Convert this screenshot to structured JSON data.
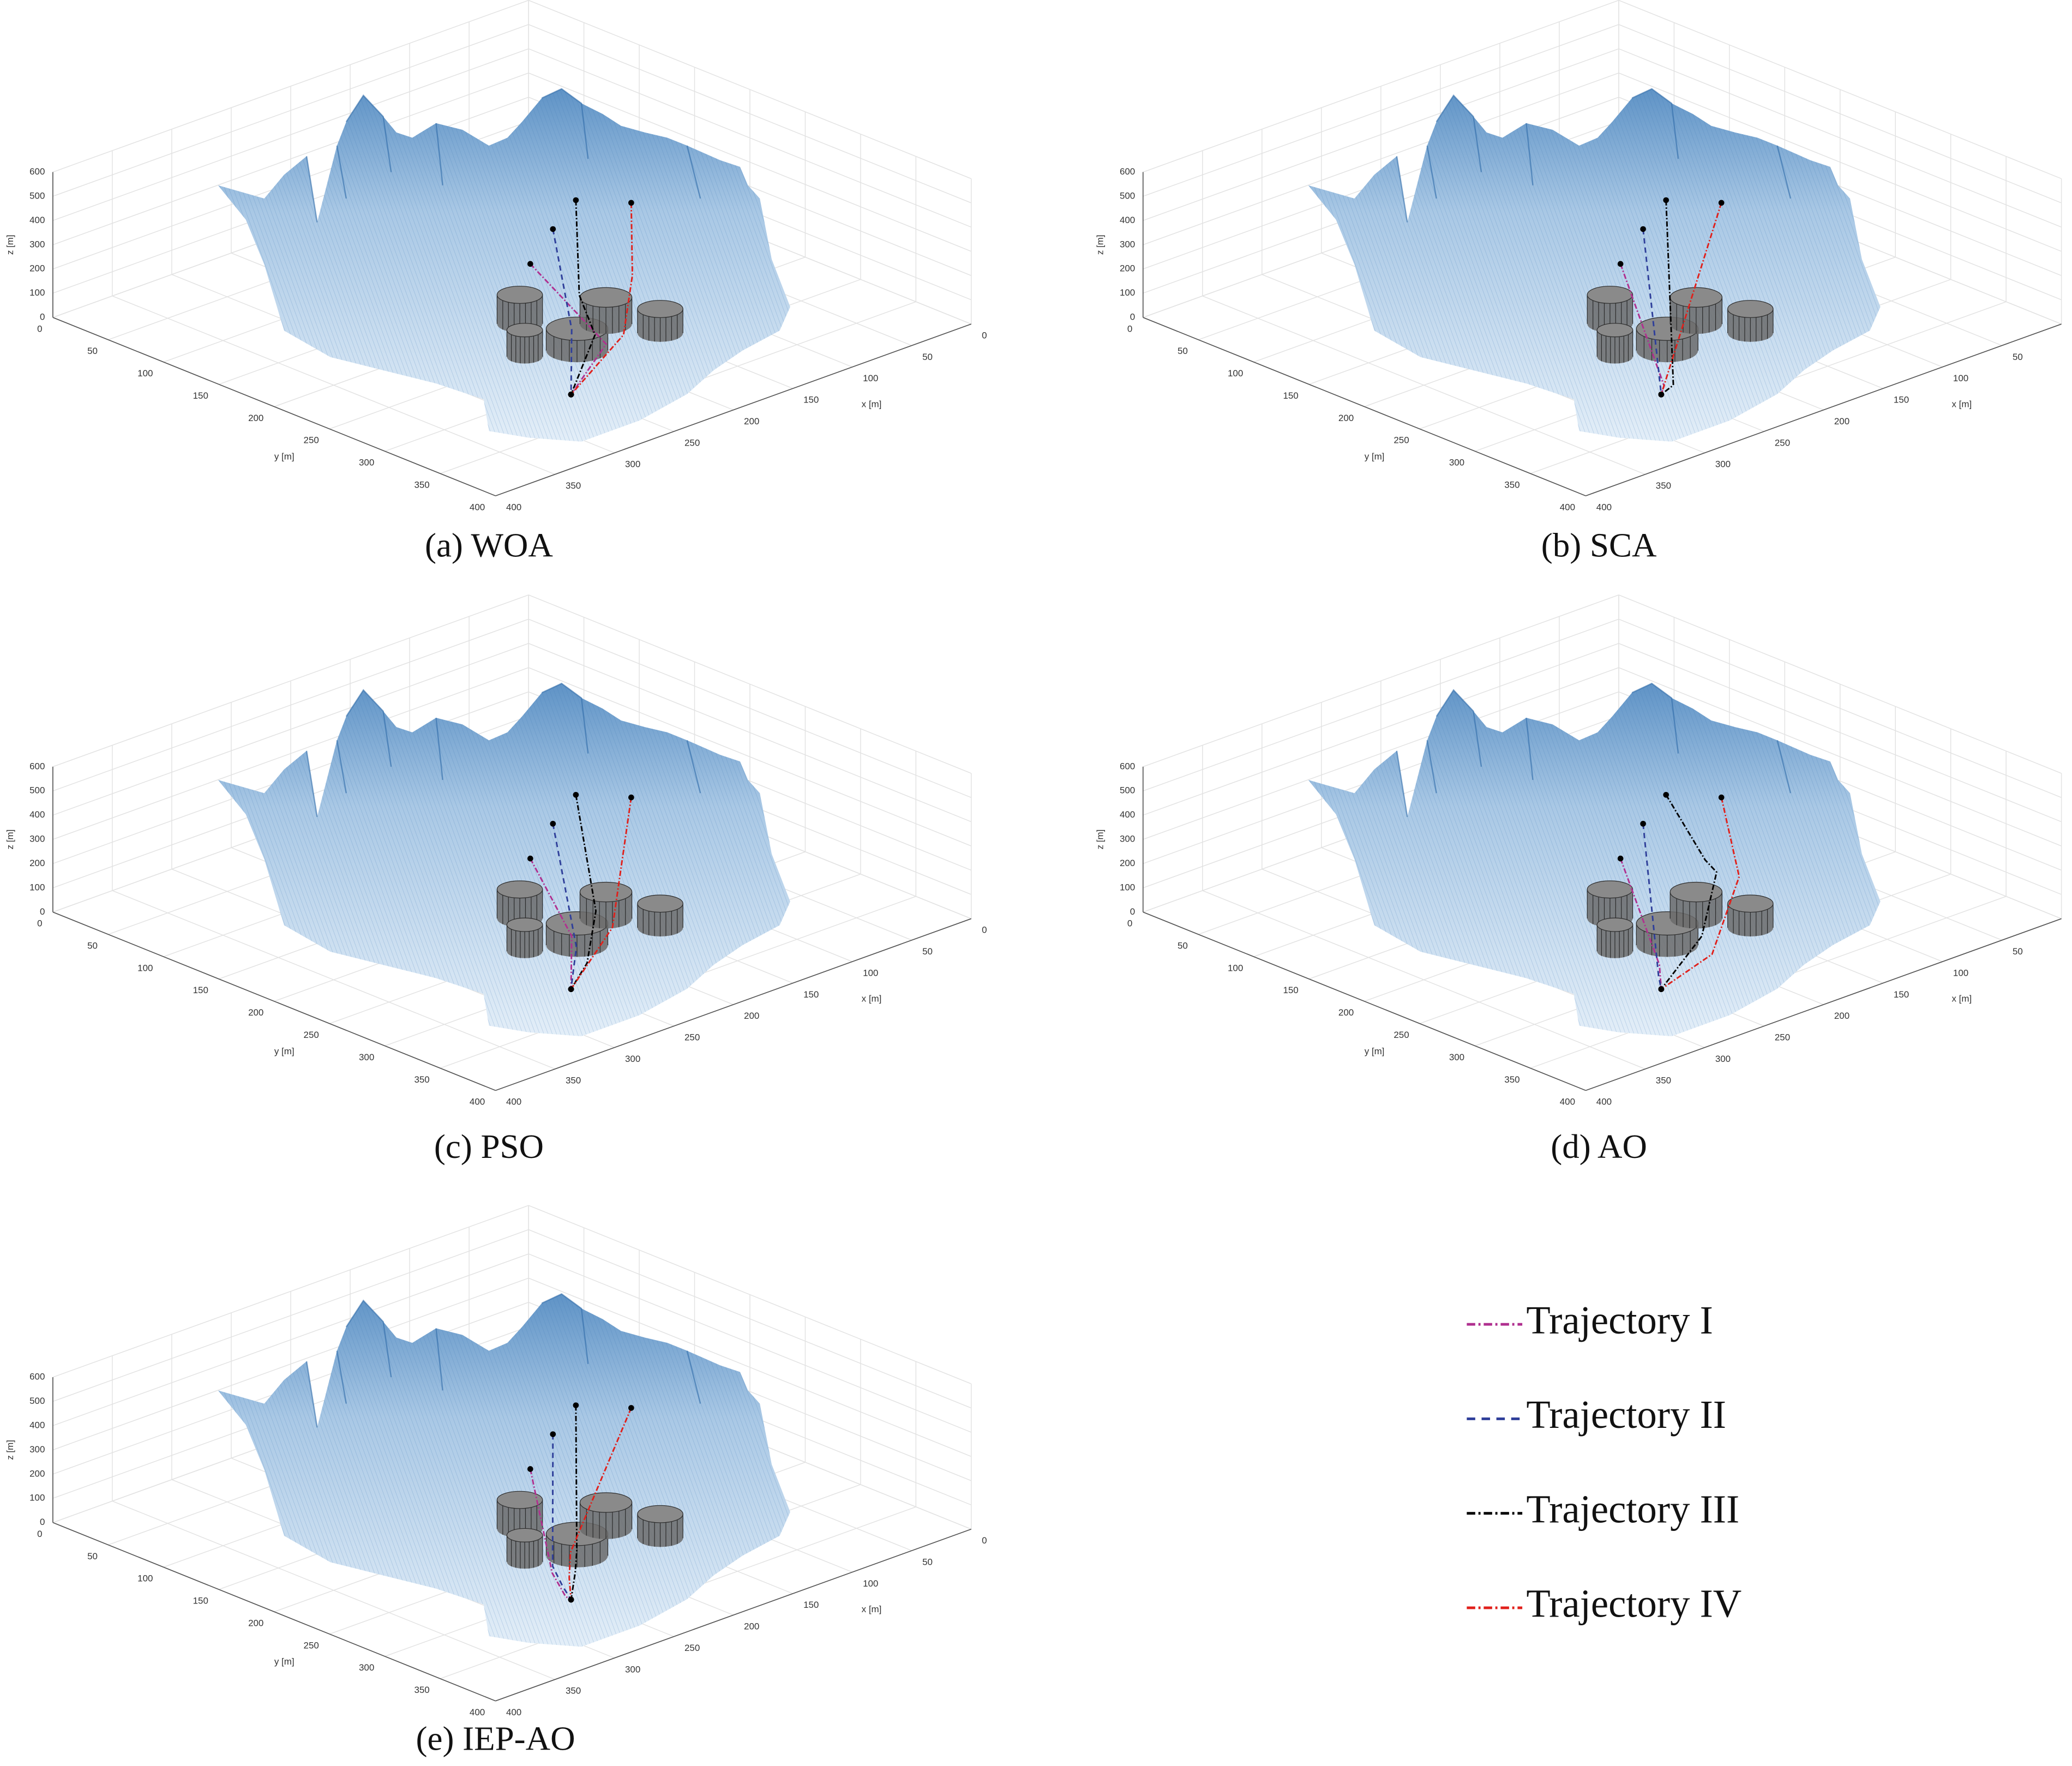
{
  "chart_data": [
    {
      "type": "trajectory3d",
      "caption": "(a) WOA",
      "xlabel": "x [m]",
      "ylabel": "y [m]",
      "zlabel": "z [m]",
      "xlim": [
        0,
        400
      ],
      "ylim": [
        0,
        400
      ],
      "zlim": [
        0,
        600
      ],
      "xticks": [
        0,
        50,
        100,
        150,
        200,
        250,
        300,
        350,
        400
      ],
      "yticks": [
        0,
        50,
        100,
        150,
        200,
        250,
        300,
        350,
        400
      ],
      "zticks": [
        0,
        100,
        200,
        300,
        400,
        500,
        600
      ],
      "grid": true,
      "obstacles": [
        {
          "x": 200,
          "y": 207,
          "r": 14,
          "h": 120
        },
        {
          "x": 234,
          "y": 248,
          "r": 11,
          "h": 110
        },
        {
          "x": 204,
          "y": 263,
          "r": 19,
          "h": 90
        },
        {
          "x": 162,
          "y": 244,
          "r": 16,
          "h": 110
        },
        {
          "x": 148,
          "y": 278,
          "r": 14,
          "h": 100
        }
      ],
      "series": [
        {
          "color": "#b0308f",
          "dash": "dashdot",
          "x": [
            180,
            200,
            263
          ],
          "y": [
            195,
            285,
            321
          ],
          "z": [
            190,
            60,
            30
          ]
        },
        {
          "color": "#2f3f9a",
          "dash": "dashed",
          "x": [
            161,
            215,
            263
          ],
          "y": [
            195,
            270,
            321
          ],
          "z": [
            300,
            120,
            30
          ]
        },
        {
          "color": "#000000",
          "dash": "dashdot",
          "x": [
            151,
            190,
            200,
            263
          ],
          "y": [
            205,
            250,
            275,
            321
          ],
          "z": [
            420,
            180,
            80,
            30
          ]
        },
        {
          "color": "#e0201b",
          "dash": "dashdot",
          "x": [
            124,
            150,
            190,
            263
          ],
          "y": [
            226,
            255,
            290,
            321
          ],
          "z": [
            400,
            200,
            90,
            30
          ]
        }
      ]
    },
    {
      "type": "trajectory3d",
      "caption": "(b) SCA",
      "xlabel": "x [m]",
      "ylabel": "y [m]",
      "zlabel": "z [m]",
      "xlim": [
        0,
        400
      ],
      "ylim": [
        0,
        400
      ],
      "zlim": [
        0,
        600
      ],
      "xticks": [
        0,
        50,
        100,
        150,
        200,
        250,
        300,
        350,
        400
      ],
      "yticks": [
        0,
        50,
        100,
        150,
        200,
        250,
        300,
        350,
        400
      ],
      "zticks": [
        0,
        100,
        200,
        300,
        400,
        500,
        600
      ],
      "grid": true,
      "obstacles": [
        {
          "x": 200,
          "y": 207,
          "r": 14,
          "h": 120
        },
        {
          "x": 234,
          "y": 248,
          "r": 11,
          "h": 110
        },
        {
          "x": 204,
          "y": 263,
          "r": 19,
          "h": 90
        },
        {
          "x": 162,
          "y": 244,
          "r": 16,
          "h": 110
        },
        {
          "x": 148,
          "y": 278,
          "r": 14,
          "h": 100
        }
      ],
      "series": [
        {
          "color": "#b0308f",
          "dash": "dashdot",
          "x": [
            180,
            255,
            263
          ],
          "y": [
            195,
            315,
            321
          ],
          "z": [
            190,
            40,
            30
          ]
        },
        {
          "color": "#2f3f9a",
          "dash": "dashed",
          "x": [
            161,
            263
          ],
          "y": [
            195,
            321
          ],
          "z": [
            300,
            30
          ]
        },
        {
          "color": "#000000",
          "dash": "dashdot",
          "x": [
            151,
            250,
            263
          ],
          "y": [
            205,
            318,
            321
          ],
          "z": [
            420,
            40,
            30
          ]
        },
        {
          "color": "#e0201b",
          "dash": "dashdot",
          "x": [
            124,
            263
          ],
          "y": [
            226,
            321
          ],
          "z": [
            400,
            30
          ]
        }
      ]
    },
    {
      "type": "trajectory3d",
      "caption": "(c) PSO",
      "xlabel": "x [m]",
      "ylabel": "y [m]",
      "zlabel": "z [m]",
      "xlim": [
        0,
        400
      ],
      "ylim": [
        0,
        400
      ],
      "zlim": [
        0,
        600
      ],
      "xticks": [
        0,
        50,
        100,
        150,
        200,
        250,
        300,
        350,
        400
      ],
      "yticks": [
        0,
        50,
        100,
        150,
        200,
        250,
        300,
        350,
        400
      ],
      "zticks": [
        0,
        100,
        200,
        300,
        400,
        500,
        600
      ],
      "grid": true,
      "obstacles": [
        {
          "x": 200,
          "y": 207,
          "r": 14,
          "h": 120
        },
        {
          "x": 234,
          "y": 248,
          "r": 11,
          "h": 110
        },
        {
          "x": 204,
          "y": 263,
          "r": 19,
          "h": 90
        },
        {
          "x": 162,
          "y": 244,
          "r": 16,
          "h": 110
        },
        {
          "x": 148,
          "y": 278,
          "r": 14,
          "h": 100
        }
      ],
      "series": [
        {
          "color": "#b0308f",
          "dash": "dashdot",
          "x": [
            180,
            215,
            263
          ],
          "y": [
            195,
            270,
            321
          ],
          "z": [
            190,
            70,
            30
          ]
        },
        {
          "color": "#2f3f9a",
          "dash": "dashed",
          "x": [
            161,
            225,
            263
          ],
          "y": [
            195,
            285,
            321
          ],
          "z": [
            300,
            70,
            30
          ]
        },
        {
          "color": "#000000",
          "dash": "dashdot",
          "x": [
            151,
            190,
            230,
            263
          ],
          "y": [
            205,
            265,
            300,
            321
          ],
          "z": [
            420,
            120,
            40,
            30
          ]
        },
        {
          "color": "#e0201b",
          "dash": "dashdot",
          "x": [
            124,
            190,
            263
          ],
          "y": [
            226,
            280,
            321
          ],
          "z": [
            400,
            80,
            30
          ]
        }
      ]
    },
    {
      "type": "trajectory3d",
      "caption": "(d) AO",
      "xlabel": "x [m]",
      "ylabel": "y [m]",
      "zlabel": "z [m]",
      "xlim": [
        0,
        400
      ],
      "ylim": [
        0,
        400
      ],
      "zlim": [
        0,
        600
      ],
      "xticks": [
        0,
        50,
        100,
        150,
        200,
        250,
        300,
        350,
        400
      ],
      "yticks": [
        0,
        50,
        100,
        150,
        200,
        250,
        300,
        350,
        400
      ],
      "zticks": [
        0,
        100,
        200,
        300,
        400,
        500,
        600
      ],
      "grid": true,
      "obstacles": [
        {
          "x": 200,
          "y": 207,
          "r": 14,
          "h": 120
        },
        {
          "x": 234,
          "y": 248,
          "r": 11,
          "h": 110
        },
        {
          "x": 204,
          "y": 263,
          "r": 19,
          "h": 90
        },
        {
          "x": 162,
          "y": 244,
          "r": 16,
          "h": 110
        },
        {
          "x": 148,
          "y": 278,
          "r": 14,
          "h": 100
        }
      ],
      "series": [
        {
          "color": "#b0308f",
          "dash": "dashdot",
          "x": [
            180,
            245,
            263
          ],
          "y": [
            195,
            300,
            321
          ],
          "z": [
            190,
            60,
            30
          ]
        },
        {
          "color": "#2f3f9a",
          "dash": "dashed",
          "x": [
            161,
            255,
            263
          ],
          "y": [
            195,
            310,
            321
          ],
          "z": [
            300,
            50,
            30
          ]
        },
        {
          "color": "#000000",
          "dash": "dashdot",
          "x": [
            151,
            160,
            155,
            200,
            263
          ],
          "y": [
            205,
            250,
            255,
            290,
            321
          ],
          "z": [
            420,
            250,
            200,
            80,
            30
          ]
        },
        {
          "color": "#e0201b",
          "dash": "dashdot",
          "x": [
            124,
            150,
            210,
            263
          ],
          "y": [
            226,
            270,
            310,
            321
          ],
          "z": [
            400,
            200,
            60,
            30
          ]
        }
      ]
    },
    {
      "type": "trajectory3d",
      "caption": "(e) IEP-AO",
      "xlabel": "x [m]",
      "ylabel": "y [m]",
      "zlabel": "z [m]",
      "xlim": [
        0,
        400
      ],
      "ylim": [
        0,
        400
      ],
      "zlim": [
        0,
        600
      ],
      "xticks": [
        0,
        50,
        100,
        150,
        200,
        250,
        300,
        350,
        400
      ],
      "yticks": [
        0,
        50,
        100,
        150,
        200,
        250,
        300,
        350,
        400
      ],
      "zticks": [
        0,
        100,
        200,
        300,
        400,
        500,
        600
      ],
      "grid": true,
      "obstacles": [
        {
          "x": 200,
          "y": 207,
          "r": 14,
          "h": 120
        },
        {
          "x": 234,
          "y": 248,
          "r": 11,
          "h": 110
        },
        {
          "x": 204,
          "y": 263,
          "r": 19,
          "h": 90
        },
        {
          "x": 162,
          "y": 244,
          "r": 16,
          "h": 110
        },
        {
          "x": 148,
          "y": 278,
          "r": 14,
          "h": 100
        }
      ],
      "series": [
        {
          "color": "#b0308f",
          "dash": "dashdot",
          "x": [
            180,
            250,
            262,
            263
          ],
          "y": [
            195,
            290,
            315,
            321
          ],
          "z": [
            190,
            60,
            30,
            30
          ]
        },
        {
          "color": "#2f3f9a",
          "dash": "dashed",
          "x": [
            161,
            245,
            255,
            263
          ],
          "y": [
            195,
            285,
            305,
            321
          ],
          "z": [
            300,
            70,
            40,
            30
          ]
        },
        {
          "color": "#000000",
          "dash": "dashdot",
          "x": [
            151,
            220,
            240,
            263
          ],
          "y": [
            205,
            280,
            300,
            321
          ],
          "z": [
            420,
            80,
            60,
            30
          ]
        },
        {
          "color": "#e0201b",
          "dash": "dashdot",
          "x": [
            124,
            230,
            245,
            263
          ],
          "y": [
            226,
            285,
            300,
            321
          ],
          "z": [
            400,
            100,
            50,
            30
          ]
        }
      ]
    }
  ],
  "legend": {
    "entries": [
      {
        "name": "Trajectory I",
        "color": "#b0308f",
        "dash": "dashdot"
      },
      {
        "name": "Trajectory II",
        "color": "#2f3f9a",
        "dash": "dashed"
      },
      {
        "name": "Trajectory III",
        "color": "#000000",
        "dash": "dashdot"
      },
      {
        "name": "Trajectory IV",
        "color": "#e0201b",
        "dash": "dashdot"
      }
    ]
  }
}
